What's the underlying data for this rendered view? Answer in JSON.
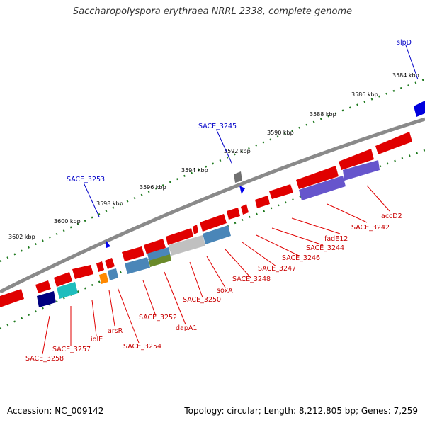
{
  "title": "Saccharopolyspora erythraea NRRL 2338, complete genome",
  "footer": {
    "accession": "Accession: NC_009142",
    "summary": "Topology: circular; Length: 8,212,805 bp; Genes: 7,259"
  },
  "colors": {
    "forward": "#e00000",
    "reverse": "#e00000",
    "backbone": "#888888",
    "tick": "#1f7a1f",
    "label_fwd": "#0000c8",
    "label_rev": "#c80000"
  },
  "kbp_labels": [
    "3584 kbp",
    "3586 kbp",
    "3588 kbp",
    "3590 kbp",
    "3592 kbp",
    "3594 kbp",
    "3596 kbp",
    "3598 kbp",
    "3600 kbp",
    "3602 kbp"
  ],
  "labels_top": [
    "slpD",
    "SACE_3245",
    "SACE_3253"
  ],
  "labels_bottom": [
    "accD2",
    "SACE_3242",
    "fadE12",
    "SACE_3244",
    "SACE_3246",
    "SACE_3247",
    "SACE_3248",
    "soxA",
    "SACE_3250",
    "dapA1",
    "SACE_3252",
    "SACE_3254",
    "arsR",
    "iolE",
    "SACE_3257",
    "SACE_3258"
  ]
}
